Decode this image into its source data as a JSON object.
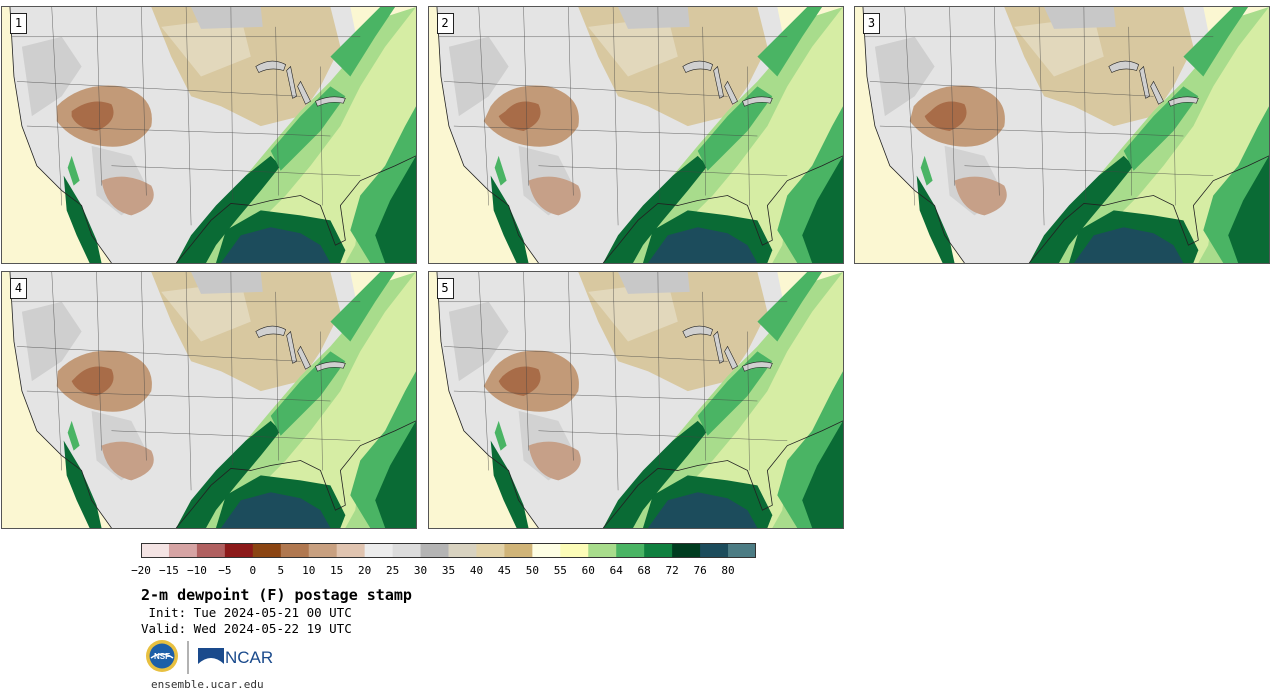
{
  "panels": [
    {
      "label": "1",
      "col": 0,
      "row": 0
    },
    {
      "label": "2",
      "col": 1,
      "row": 0
    },
    {
      "label": "3",
      "col": 2,
      "row": 0
    },
    {
      "label": "4",
      "col": 0,
      "row": 1
    },
    {
      "label": "5",
      "col": 1,
      "row": 1
    }
  ],
  "colorbar": {
    "ticks": [
      "-20",
      "-15",
      "-10",
      "-5",
      "0",
      "5",
      "10",
      "15",
      "20",
      "25",
      "30",
      "35",
      "40",
      "45",
      "50",
      "55",
      "60",
      "64",
      "68",
      "72",
      "76",
      "80"
    ],
    "colors": [
      "#f4e4e4",
      "#d6a4a4",
      "#b06060",
      "#8c1a1a",
      "#8b4513",
      "#b07850",
      "#c8a080",
      "#e0c4b0",
      "#ececec",
      "#dcdcdc",
      "#b4b4b4",
      "#d8d2c0",
      "#e2d2a8",
      "#d0b478",
      "#fefee4",
      "#fcfcb8",
      "#a8dc8c",
      "#4ab464",
      "#108040",
      "#003c20",
      "#1c4c5c",
      "#4c7c84"
    ]
  },
  "title": "2-m dewpoint (F) postage stamp",
  "init": " Init: Tue 2024-05-21 00 UTC",
  "valid": "Valid: Wed 2024-05-22 19 UTC",
  "logos": {
    "nsf": "NSF",
    "ncar": "NCAR"
  },
  "footer": "ensemble.ucar.edu",
  "colors": {
    "ocean_gulf": "#1c4c5c",
    "ocean_pacific": "#fefee0",
    "moist_dark": "#0a6b35",
    "moist_mid": "#4ab464",
    "moist_light": "#a8dc8c",
    "dry_brown": "#b07850",
    "dry_tan": "#d0b478",
    "gray_high": "#d0d0d0"
  }
}
